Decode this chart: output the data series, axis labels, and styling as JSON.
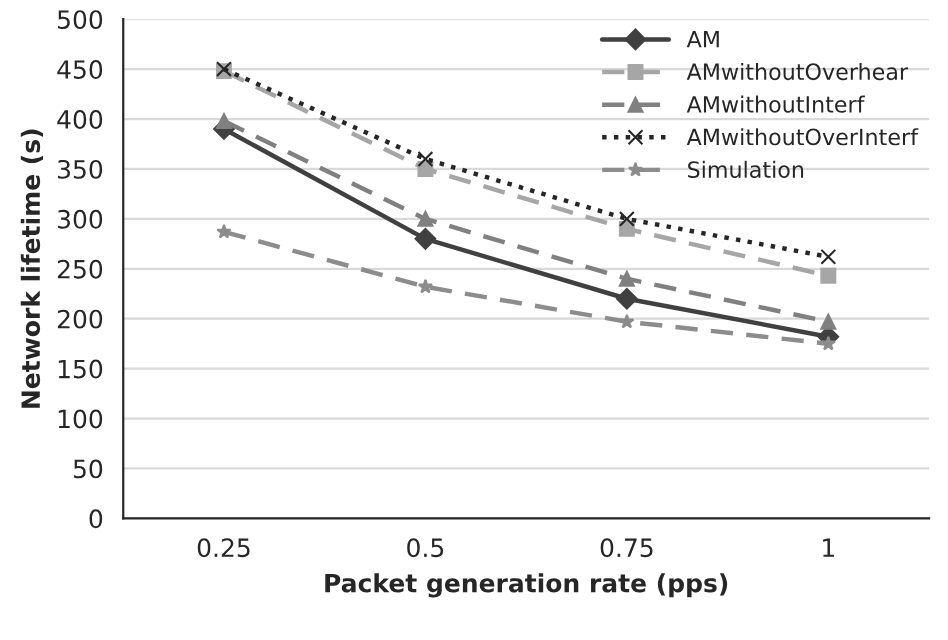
{
  "chart_data": {
    "type": "line",
    "xlabel": "Packet generation rate (pps)",
    "ylabel": "Network lifetime (s)",
    "categories": [
      "0.25",
      "0.5",
      "0.75",
      "1"
    ],
    "series": [
      {
        "name": "AM",
        "color": "#404040",
        "values": [
          390,
          280,
          220,
          182
        ],
        "marker": "diamond",
        "line_style": "solid"
      },
      {
        "name": "AMwithoutOverhear",
        "color": "#a6a6a6",
        "values": [
          448,
          350,
          290,
          243
        ],
        "marker": "square",
        "line_style": "dashed"
      },
      {
        "name": "AMwithoutInterf",
        "color": "#808080",
        "values": [
          398,
          300,
          240,
          197
        ],
        "marker": "triangle",
        "line_style": "dashed"
      },
      {
        "name": "AMwithoutOverInterf",
        "color": "#262626",
        "values": [
          450,
          360,
          300,
          262
        ],
        "marker": "cross",
        "line_style": "dotted"
      },
      {
        "name": "Simulation",
        "color": "#8c8c8c",
        "values": [
          287,
          232,
          197,
          175
        ],
        "marker": "star",
        "line_style": "dashed"
      }
    ],
    "ylim": [
      0,
      500
    ],
    "yticks": [
      0,
      50,
      100,
      150,
      200,
      250,
      300,
      350,
      400,
      450,
      500
    ],
    "grid": "y",
    "legend": "top right"
  }
}
